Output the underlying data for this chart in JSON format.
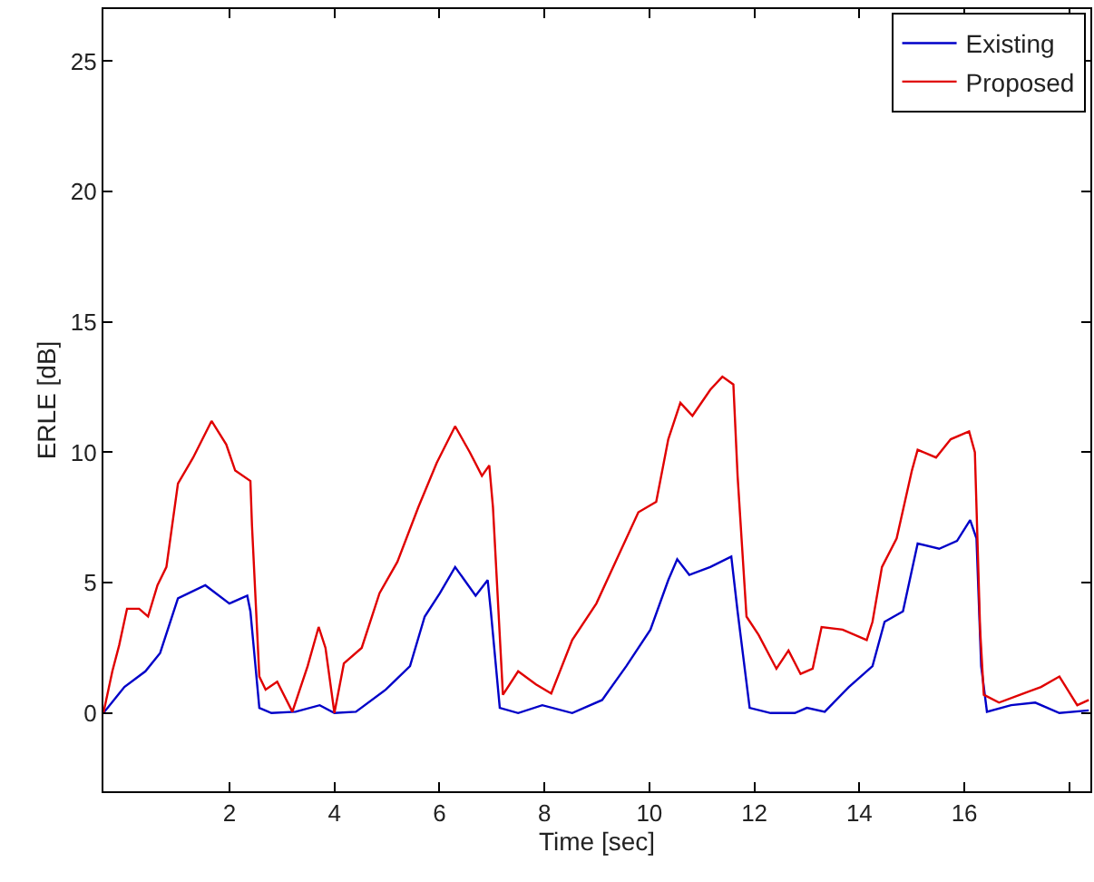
{
  "chart_data": {
    "type": "line",
    "xlabel": "Time [sec]",
    "ylabel": "ERLE [dB]",
    "xlim": [
      -0.4,
      18.4
    ],
    "xticks": [
      2,
      4,
      6,
      8,
      10,
      12,
      14,
      16,
      {
        "value": 18,
        "label": null
      }
    ],
    "ylim": [
      -3,
      27
    ],
    "yticks": [
      0,
      5,
      10,
      15,
      20,
      25
    ],
    "legend": "top right",
    "marker": "none",
    "line_style": "solid",
    "series": [
      {
        "name": "Existing",
        "color": "#0000c8",
        "x": [
          -0.4,
          0,
          0.4,
          0.68,
          1.02,
          1.54,
          2.0,
          2.34,
          2.4,
          2.57,
          2.8,
          3.26,
          3.72,
          4.0,
          4.41,
          4.98,
          5.44,
          5.72,
          6.01,
          6.3,
          6.69,
          6.92,
          6.98,
          7.15,
          7.5,
          7.96,
          8.53,
          9.1,
          9.56,
          10.02,
          10.36,
          10.53,
          10.76,
          11.16,
          11.56,
          11.68,
          11.91,
          12.31,
          12.77,
          13.0,
          13.34,
          13.8,
          14.25,
          14.48,
          14.83,
          15.11,
          15.52,
          15.86,
          16.11,
          16.23,
          16.32,
          16.43,
          16.89,
          17.35,
          17.81,
          18.37
        ],
        "values": [
          0,
          1.0,
          1.6,
          2.3,
          4.4,
          4.9,
          4.2,
          4.5,
          3.9,
          0.2,
          0,
          0.05,
          0.3,
          0,
          0.05,
          0.9,
          1.8,
          3.7,
          4.6,
          5.6,
          4.5,
          5.1,
          3.9,
          0.2,
          0,
          0.3,
          0,
          0.5,
          1.8,
          3.2,
          5.1,
          5.9,
          5.3,
          5.6,
          6.0,
          3.9,
          0.2,
          0,
          0,
          0.2,
          0.05,
          1.0,
          1.8,
          3.5,
          3.9,
          6.5,
          6.3,
          6.6,
          7.4,
          6.7,
          1.8,
          0.05,
          0.3,
          0.4,
          0,
          0.1
        ]
      },
      {
        "name": "Proposed",
        "color": "#e00000",
        "x": [
          -0.4,
          -0.23,
          -0.1,
          0.05,
          0.28,
          0.45,
          0.63,
          0.8,
          1.02,
          1.31,
          1.66,
          1.94,
          2.11,
          2.4,
          2.43,
          2.57,
          2.69,
          2.91,
          3.2,
          3.49,
          3.7,
          3.83,
          4.0,
          4.18,
          4.52,
          4.86,
          5.2,
          5.6,
          5.95,
          6.3,
          6.58,
          6.81,
          6.95,
          7.02,
          7.21,
          7.5,
          7.84,
          8.13,
          8.53,
          8.99,
          9.79,
          10.13,
          10.36,
          10.59,
          10.82,
          11.16,
          11.39,
          11.6,
          11.68,
          11.85,
          12.08,
          12.42,
          12.65,
          12.88,
          13.11,
          13.28,
          13.68,
          14.14,
          14.25,
          14.43,
          14.71,
          15.0,
          15.11,
          15.46,
          15.74,
          16.09,
          16.2,
          16.3,
          16.37,
          16.66,
          17.12,
          17.46,
          17.81,
          18.15,
          18.37
        ],
        "values": [
          0,
          1.6,
          2.6,
          4.0,
          4.0,
          3.7,
          4.9,
          5.6,
          8.8,
          9.8,
          11.2,
          10.3,
          9.3,
          8.9,
          7.2,
          1.4,
          0.9,
          1.2,
          0.05,
          1.8,
          3.3,
          2.5,
          0,
          1.9,
          2.5,
          4.6,
          5.8,
          7.9,
          9.6,
          11.0,
          10.0,
          9.1,
          9.5,
          7.9,
          0.7,
          1.6,
          1.1,
          0.75,
          2.8,
          4.2,
          7.7,
          8.1,
          10.5,
          11.9,
          11.4,
          12.4,
          12.9,
          12.6,
          9.1,
          3.7,
          3.0,
          1.7,
          2.4,
          1.5,
          1.7,
          3.3,
          3.2,
          2.8,
          3.5,
          5.6,
          6.7,
          9.3,
          10.1,
          9.8,
          10.5,
          10.8,
          10.0,
          3.2,
          0.7,
          0.4,
          0.75,
          1.0,
          1.4,
          0.3,
          0.5
        ]
      }
    ]
  }
}
